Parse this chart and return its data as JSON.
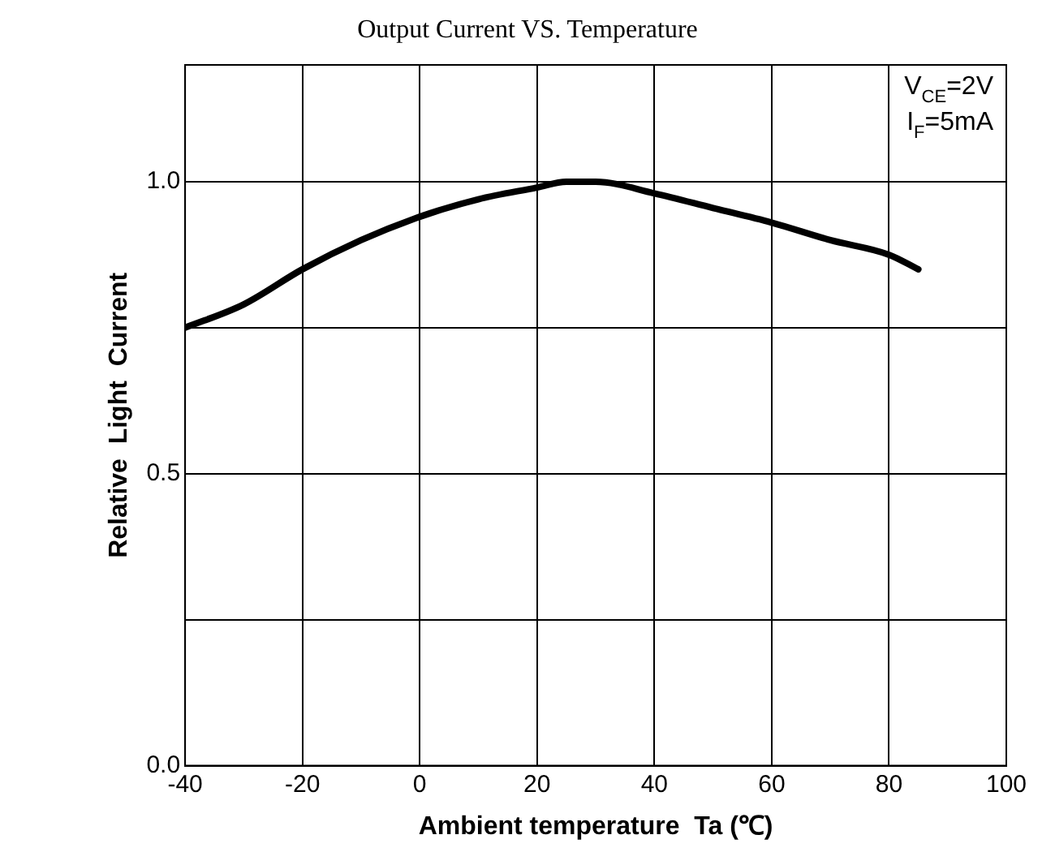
{
  "chart_data": {
    "type": "line",
    "title": "Output Current VS. Temperature",
    "xlabel": "Ambient temperature  Ta (℃)",
    "ylabel": "Relative  Light  Current",
    "x": [
      -40,
      -30,
      -20,
      -10,
      0,
      10,
      20,
      25,
      30,
      40,
      50,
      60,
      70,
      80,
      85
    ],
    "series": [
      {
        "color": "#000000",
        "values": [
          0.75,
          0.79,
          0.85,
          0.9,
          0.94,
          0.97,
          0.99,
          1.0,
          1.0,
          0.98,
          0.955,
          0.93,
          0.9,
          0.875,
          0.85
        ]
      }
    ],
    "xlim": [
      -40,
      100
    ],
    "xticks": [
      -40,
      -20,
      0,
      20,
      40,
      60,
      80,
      100
    ],
    "ylim": [
      0,
      1.2
    ],
    "yticks": [
      {
        "value": 0,
        "label": "0.0"
      },
      {
        "value": 0.25,
        "label": null
      },
      {
        "value": 0.5,
        "label": "0.5"
      },
      {
        "value": 0.75,
        "label": null
      },
      {
        "value": 1.0,
        "label": "1.0"
      }
    ],
    "grid": true,
    "legend": false,
    "marker": "none",
    "line_style": "solid",
    "annotations": [
      "V$_{CE}$=2V",
      "I$_{F}$=5mA"
    ]
  }
}
